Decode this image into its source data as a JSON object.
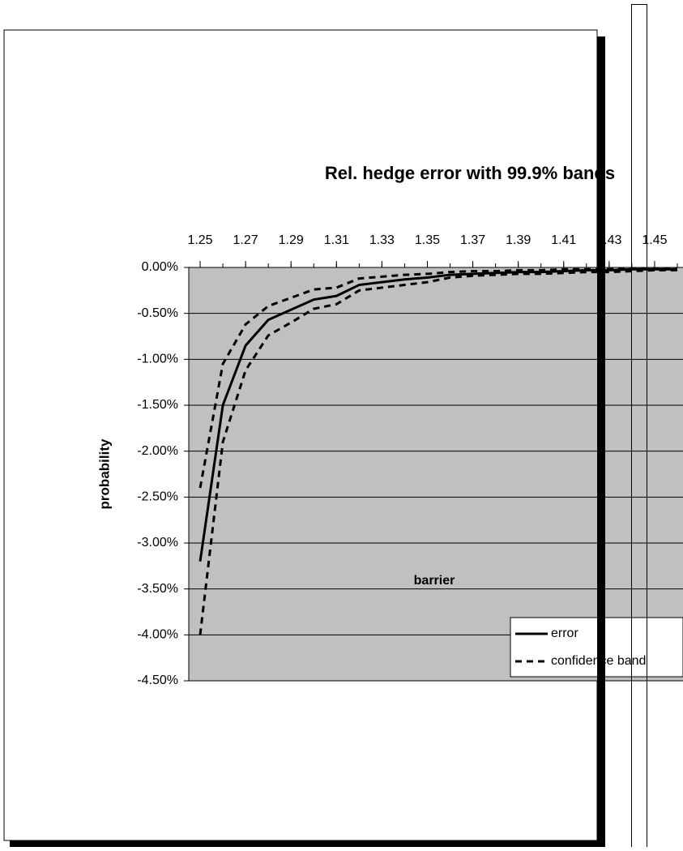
{
  "chart_data": {
    "type": "line",
    "title": "Rel. hedge error with 99.9% bands",
    "x_label": "barrier",
    "y_label": "probability",
    "x": [
      1.25,
      1.26,
      1.27,
      1.28,
      1.29,
      1.3,
      1.31,
      1.32,
      1.33,
      1.34,
      1.35,
      1.36,
      1.37,
      1.38,
      1.39,
      1.4,
      1.41,
      1.42,
      1.43,
      1.44,
      1.45,
      1.46
    ],
    "series": [
      {
        "name": "error",
        "color": "#000000",
        "dash": false,
        "values": [
          -3.2,
          -1.5,
          -0.85,
          -0.57,
          -0.46,
          -0.35,
          -0.31,
          -0.19,
          -0.16,
          -0.13,
          -0.11,
          -0.08,
          -0.07,
          -0.06,
          -0.05,
          -0.05,
          -0.04,
          -0.03,
          -0.03,
          -0.02,
          -0.02,
          -0.02
        ]
      },
      {
        "name": "confidence band",
        "color": "#000000",
        "dash": true,
        "values": [
          -2.4,
          -1.05,
          -0.62,
          -0.42,
          -0.33,
          -0.24,
          -0.22,
          -0.12,
          -0.1,
          -0.08,
          -0.07,
          -0.05,
          -0.04,
          -0.04,
          -0.03,
          -0.03,
          -0.02,
          -0.02,
          -0.02,
          -0.01,
          -0.01,
          -0.01
        ],
        "lower": [
          -4.0,
          -1.9,
          -1.12,
          -0.74,
          -0.6,
          -0.45,
          -0.4,
          -0.25,
          -0.22,
          -0.19,
          -0.16,
          -0.11,
          -0.09,
          -0.08,
          -0.07,
          -0.07,
          -0.06,
          -0.05,
          -0.05,
          -0.04,
          -0.03,
          -0.03
        ]
      }
    ],
    "xlim": [
      1.245,
      1.4625
    ],
    "xticks": [
      1.25,
      1.27,
      1.29,
      1.31,
      1.33,
      1.35,
      1.37,
      1.39,
      1.41,
      1.43,
      1.45
    ],
    "ylim": [
      -4.5,
      0
    ],
    "yticks": [
      {
        "value": 0,
        "label": "0.00%"
      },
      {
        "value": -0.5,
        "label": "-0.50%"
      },
      {
        "value": -1,
        "label": "-1.00%"
      },
      {
        "value": -1.5,
        "label": "-1.50%"
      },
      {
        "value": -2,
        "label": "-2.00%"
      },
      {
        "value": -2.5,
        "label": "-2.50%"
      },
      {
        "value": -3,
        "label": "-3.00%"
      },
      {
        "value": -3.5,
        "label": "-3.50%"
      },
      {
        "value": -4,
        "label": "-4.00%"
      },
      {
        "value": -4.5,
        "label": "-4.50%"
      }
    ],
    "grid": true,
    "plot_background": "#c0c0c0",
    "x_axis_position": "top",
    "legend": "lower right"
  }
}
